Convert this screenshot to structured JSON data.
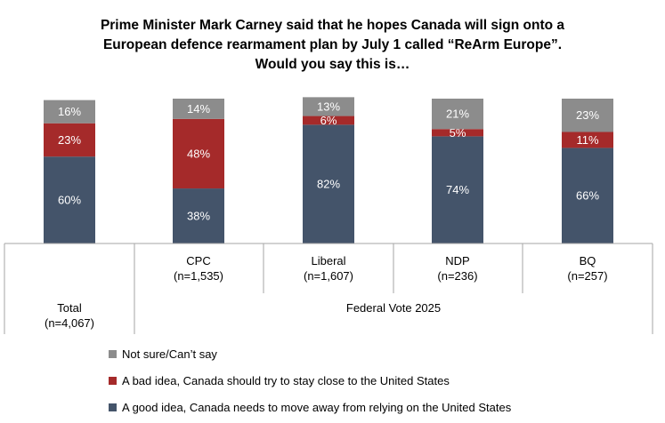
{
  "chart_data": {
    "type": "bar",
    "stacked": true,
    "title_lines": [
      "Prime Minister Mark Carney said that he hopes Canada will sign onto a",
      "European defence rearmament plan by July 1 called “ReArm Europe”.",
      "Would you say this is…"
    ],
    "categories": [
      {
        "name": "Total",
        "n": "(n=4,067)"
      },
      {
        "name": "CPC",
        "n": "(n=1,535)"
      },
      {
        "name": "Liberal",
        "n": "(n=1,607)"
      },
      {
        "name": "NDP",
        "n": "(n=236)"
      },
      {
        "name": "BQ",
        "n": "(n=257)"
      }
    ],
    "group_label": "Federal Vote 2025",
    "series": [
      {
        "name": "A good idea, Canada needs to move away from relying on the United States",
        "color": "#44546a",
        "values": [
          60,
          38,
          82,
          74,
          66
        ],
        "labels": [
          "60%",
          "38%",
          "82%",
          "74%",
          "66%"
        ]
      },
      {
        "name": "A bad idea, Canada should try to stay close to the United States",
        "color": "#a52a2a",
        "values": [
          23,
          48,
          6,
          5,
          11
        ],
        "labels": [
          "23%",
          "48%",
          "6%",
          "5%",
          "11%"
        ]
      },
      {
        "name": "Not sure/Can’t say",
        "color": "#8c8c8c",
        "values": [
          16,
          14,
          13,
          21,
          23
        ],
        "labels": [
          "16%",
          "14%",
          "13%",
          "21%",
          "23%"
        ]
      }
    ],
    "legend_order": [
      2,
      1,
      0
    ],
    "ylim": [
      0,
      100
    ],
    "legend_position": "bottom"
  }
}
